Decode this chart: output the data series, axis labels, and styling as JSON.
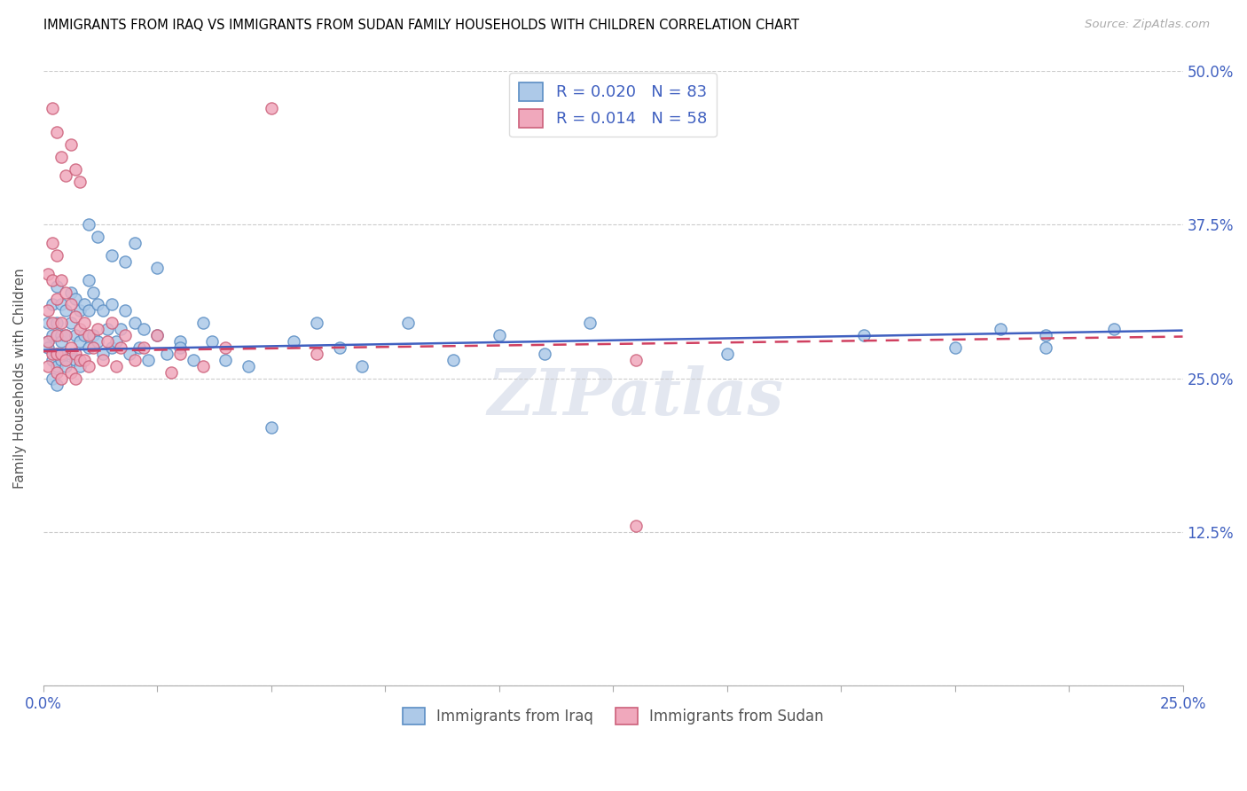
{
  "title": "IMMIGRANTS FROM IRAQ VS IMMIGRANTS FROM SUDAN FAMILY HOUSEHOLDS WITH CHILDREN CORRELATION CHART",
  "source": "Source: ZipAtlas.com",
  "ylabel": "Family Households with Children",
  "x_min": 0.0,
  "x_max": 0.25,
  "y_min": 0.0,
  "y_max": 0.5,
  "y_ticks": [
    0.0,
    0.125,
    0.25,
    0.375,
    0.5
  ],
  "y_tick_labels": [
    "",
    "12.5%",
    "25.0%",
    "37.5%",
    "50.0%"
  ],
  "iraq_R": 0.02,
  "iraq_N": 83,
  "sudan_R": 0.014,
  "sudan_N": 58,
  "iraq_color": "#adc9e8",
  "iraq_edge_color": "#5b8ec4",
  "sudan_color": "#f0a8bc",
  "sudan_edge_color": "#cc607a",
  "iraq_line_color": "#4060c0",
  "sudan_line_color": "#d04060",
  "legend_label_iraq": "Immigrants from Iraq",
  "legend_label_sudan": "Immigrants from Sudan",
  "iraq_x": [
    0.001,
    0.001,
    0.001,
    0.002,
    0.002,
    0.002,
    0.002,
    0.003,
    0.003,
    0.003,
    0.003,
    0.003,
    0.004,
    0.004,
    0.004,
    0.004,
    0.005,
    0.005,
    0.005,
    0.005,
    0.006,
    0.006,
    0.006,
    0.007,
    0.007,
    0.007,
    0.008,
    0.008,
    0.008,
    0.009,
    0.009,
    0.01,
    0.01,
    0.01,
    0.011,
    0.011,
    0.012,
    0.012,
    0.013,
    0.013,
    0.014,
    0.015,
    0.015,
    0.016,
    0.017,
    0.018,
    0.019,
    0.02,
    0.021,
    0.022,
    0.023,
    0.025,
    0.027,
    0.03,
    0.033,
    0.035,
    0.037,
    0.04,
    0.045,
    0.05,
    0.055,
    0.06,
    0.065,
    0.07,
    0.08,
    0.09,
    0.1,
    0.11,
    0.12,
    0.15,
    0.18,
    0.2,
    0.21,
    0.22,
    0.235,
    0.01,
    0.012,
    0.015,
    0.018,
    0.02,
    0.025,
    0.03,
    0.22
  ],
  "iraq_y": [
    0.295,
    0.28,
    0.275,
    0.31,
    0.285,
    0.265,
    0.25,
    0.325,
    0.295,
    0.27,
    0.26,
    0.245,
    0.31,
    0.285,
    0.265,
    0.28,
    0.305,
    0.285,
    0.27,
    0.26,
    0.32,
    0.295,
    0.27,
    0.315,
    0.285,
    0.265,
    0.305,
    0.28,
    0.26,
    0.31,
    0.285,
    0.33,
    0.305,
    0.275,
    0.32,
    0.285,
    0.31,
    0.28,
    0.305,
    0.27,
    0.29,
    0.31,
    0.275,
    0.28,
    0.29,
    0.305,
    0.27,
    0.295,
    0.275,
    0.29,
    0.265,
    0.285,
    0.27,
    0.28,
    0.265,
    0.295,
    0.28,
    0.265,
    0.26,
    0.21,
    0.28,
    0.295,
    0.275,
    0.26,
    0.295,
    0.265,
    0.285,
    0.27,
    0.295,
    0.27,
    0.285,
    0.275,
    0.29,
    0.285,
    0.29,
    0.375,
    0.365,
    0.35,
    0.345,
    0.36,
    0.34,
    0.275,
    0.275
  ],
  "sudan_x": [
    0.001,
    0.001,
    0.001,
    0.001,
    0.002,
    0.002,
    0.002,
    0.002,
    0.003,
    0.003,
    0.003,
    0.003,
    0.003,
    0.004,
    0.004,
    0.004,
    0.004,
    0.005,
    0.005,
    0.005,
    0.006,
    0.006,
    0.006,
    0.007,
    0.007,
    0.007,
    0.008,
    0.008,
    0.009,
    0.009,
    0.01,
    0.01,
    0.011,
    0.012,
    0.013,
    0.014,
    0.015,
    0.016,
    0.017,
    0.018,
    0.02,
    0.022,
    0.025,
    0.028,
    0.03,
    0.035,
    0.04,
    0.06,
    0.13,
    0.002,
    0.003,
    0.004,
    0.005,
    0.006,
    0.007,
    0.008,
    0.05,
    0.13
  ],
  "sudan_y": [
    0.335,
    0.305,
    0.28,
    0.26,
    0.36,
    0.33,
    0.295,
    0.27,
    0.35,
    0.315,
    0.285,
    0.27,
    0.255,
    0.33,
    0.295,
    0.27,
    0.25,
    0.32,
    0.285,
    0.265,
    0.31,
    0.275,
    0.255,
    0.3,
    0.27,
    0.25,
    0.29,
    0.265,
    0.295,
    0.265,
    0.285,
    0.26,
    0.275,
    0.29,
    0.265,
    0.28,
    0.295,
    0.26,
    0.275,
    0.285,
    0.265,
    0.275,
    0.285,
    0.255,
    0.27,
    0.26,
    0.275,
    0.27,
    0.265,
    0.47,
    0.45,
    0.43,
    0.415,
    0.44,
    0.42,
    0.41,
    0.47,
    0.13
  ],
  "iraq_trendline": [
    0.273,
    0.289
  ],
  "sudan_trendline": [
    0.272,
    0.284
  ],
  "watermark": "ZIPatlas"
}
